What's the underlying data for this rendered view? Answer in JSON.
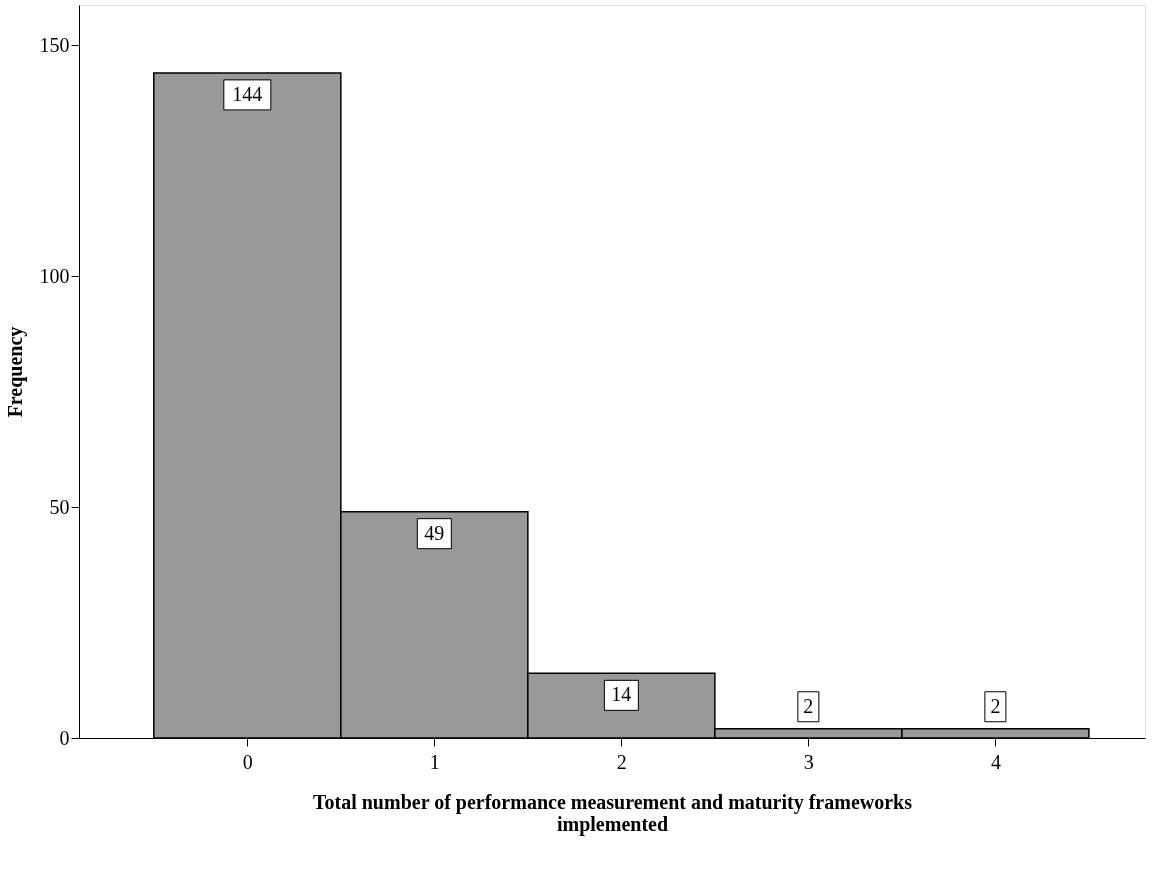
{
  "chart_data": {
    "type": "histogram",
    "xlabel": "Total number of performance measurement and maturity frameworks\nimplemented",
    "ylabel": "Frequency",
    "bins": [
      -0.5,
      0.5,
      1.5,
      2.5,
      3.5,
      4.5
    ],
    "values": [
      144,
      49,
      14,
      2,
      2
    ],
    "color": "#999999",
    "data_labels": true,
    "xlim": [
      -0.9,
      4.8
    ],
    "xticks": [
      0,
      1,
      2,
      3,
      4
    ],
    "ylim": [
      0,
      158.7
    ],
    "yticks": [
      0,
      50,
      100,
      150
    ],
    "grid": false
  }
}
